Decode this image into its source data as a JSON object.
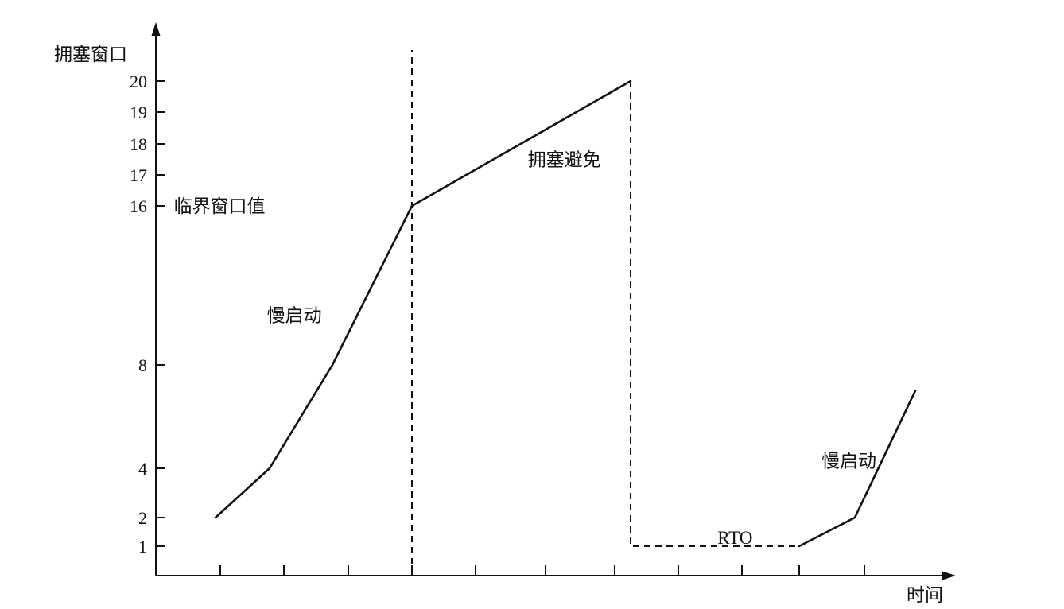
{
  "chart_data": {
    "type": "line",
    "ylabel": "拥塞窗口",
    "xlabel": "时间",
    "y_ticks": [
      1,
      2,
      4,
      8,
      16,
      17,
      18,
      19,
      20
    ],
    "x_tick_count": 11,
    "series": [
      {
        "style": "solid",
        "points": [
          [
            1,
            2
          ],
          [
            2,
            4
          ],
          [
            3,
            8
          ],
          [
            4,
            16
          ],
          [
            7.25,
            20
          ]
        ]
      },
      {
        "style": "dashed",
        "points": [
          [
            4,
            0
          ],
          [
            4,
            21
          ]
        ]
      },
      {
        "style": "dashed",
        "points": [
          [
            7.25,
            20
          ],
          [
            7.25,
            1
          ],
          [
            10,
            1
          ]
        ]
      },
      {
        "style": "solid",
        "points": [
          [
            10,
            1
          ],
          [
            11,
            2
          ],
          [
            12,
            7
          ]
        ]
      }
    ],
    "annotations": [
      {
        "text": "临界窗口值",
        "x": 0.3,
        "y": 16
      },
      {
        "text": "慢启动",
        "x": 1.95,
        "y": 10.5
      },
      {
        "text": "拥塞避免",
        "x": 5.8,
        "y": 17.5
      },
      {
        "text": "RTO",
        "x": 8.6,
        "y": 1.3
      },
      {
        "text": "慢启动",
        "x": 10.4,
        "y": 4.3
      }
    ]
  }
}
